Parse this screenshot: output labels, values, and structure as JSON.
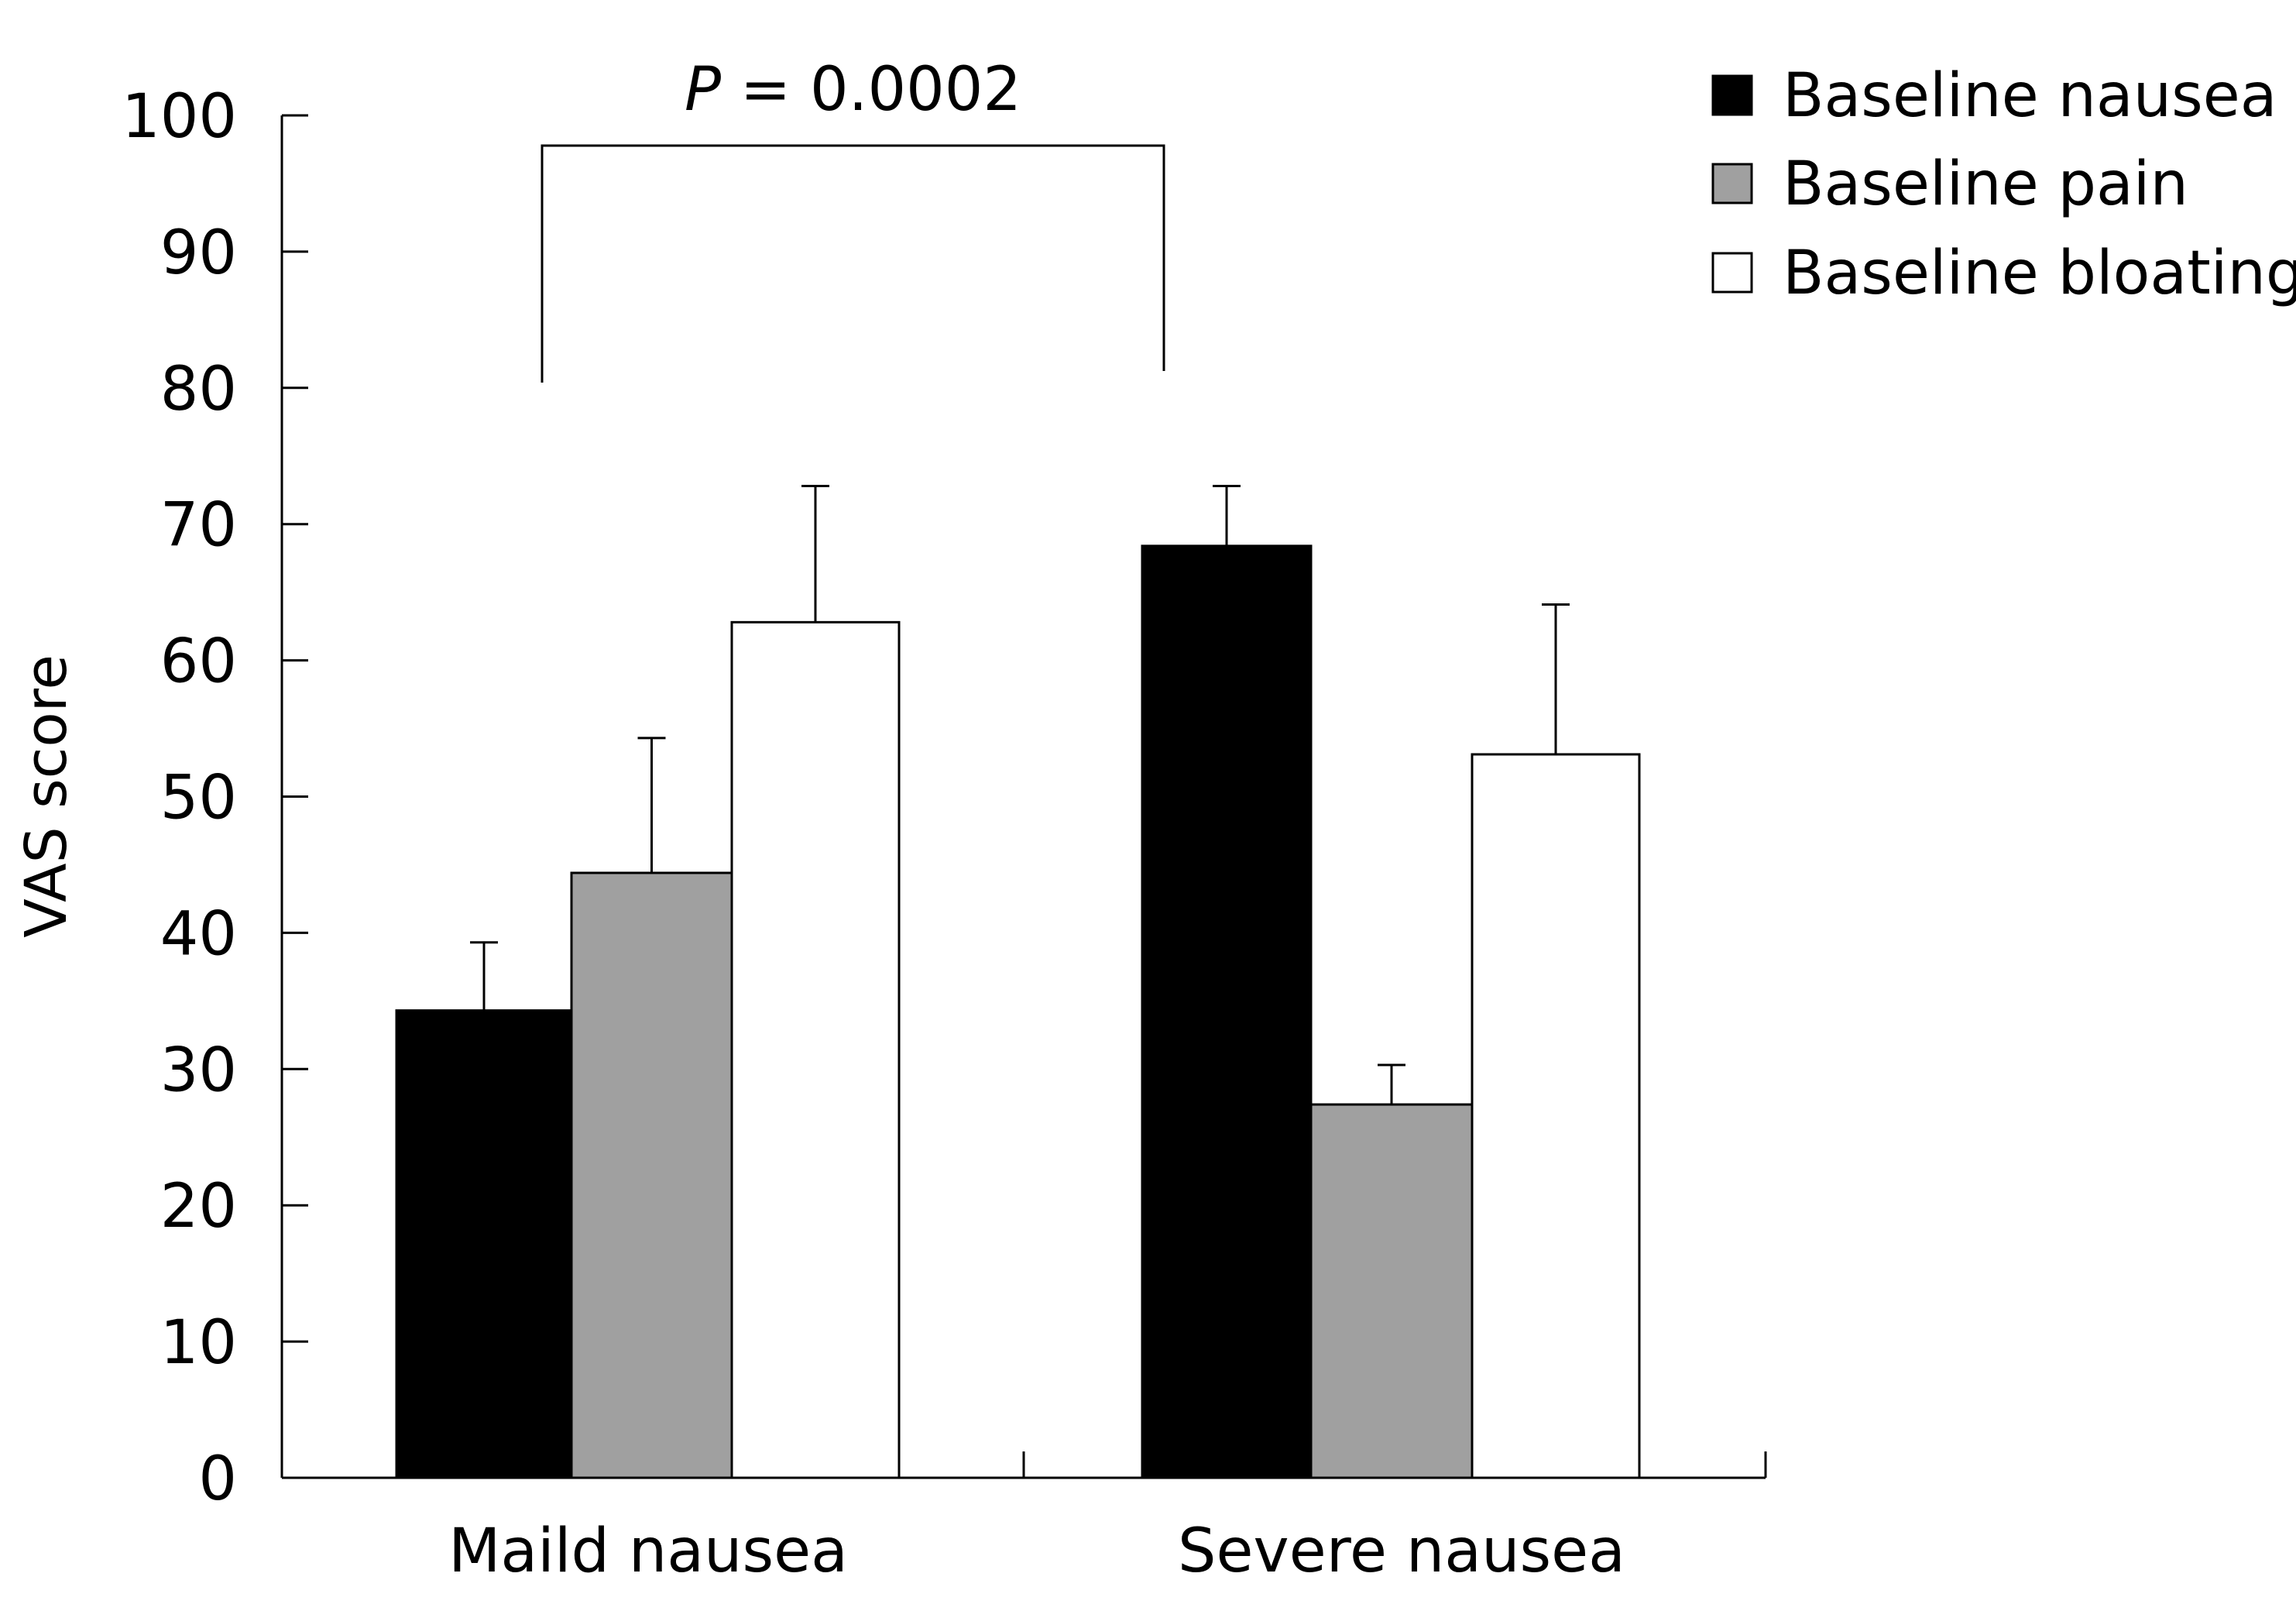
{
  "chart_data": {
    "type": "bar",
    "categories": [
      "Maild nausea",
      "Severe nausea"
    ],
    "series": [
      {
        "name": "Baseline nausea",
        "values": [
          34.3,
          68.4
        ],
        "errors": [
          5.0,
          4.4
        ],
        "color": "#000000"
      },
      {
        "name": "Baseline pain",
        "values": [
          44.4,
          27.4
        ],
        "errors": [
          9.9,
          2.9
        ],
        "color": "#a0a0a0"
      },
      {
        "name": "Baseline bloating",
        "values": [
          62.8,
          53.1
        ],
        "errors": [
          10.0,
          11.0
        ],
        "color": "#ffffff"
      }
    ],
    "ylabel": "VAS score",
    "xlabel": "",
    "ylim": [
      0,
      100
    ],
    "yticks": [
      "0",
      "10",
      "20",
      "30",
      "40",
      "50",
      "60",
      "70",
      "80",
      "90",
      "100"
    ],
    "legend_position": "top-right",
    "annotation": {
      "p_label": "P",
      "p_value_text": " = 0.0002"
    },
    "grid": false
  }
}
